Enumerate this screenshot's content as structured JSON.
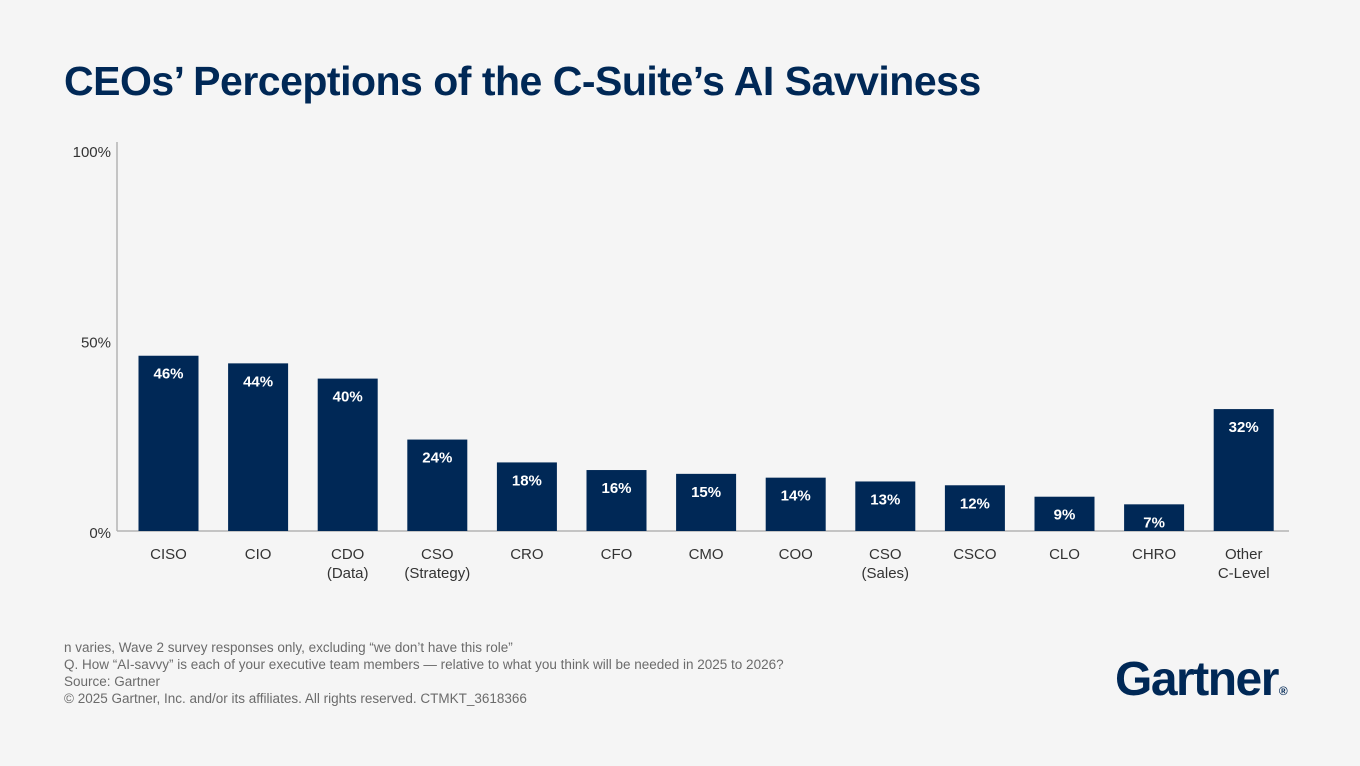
{
  "chart_data": {
    "type": "bar",
    "title": "CEOs’ Perceptions of the C-Suite’s AI Savviness",
    "xlabel": "",
    "ylabel": "",
    "ylim": [
      0,
      100
    ],
    "yticks": [
      {
        "value": 0,
        "label": "0%"
      },
      {
        "value": 50,
        "label": "50%"
      },
      {
        "value": 100,
        "label": "100%"
      }
    ],
    "categories": [
      [
        "CISO"
      ],
      [
        "CIO"
      ],
      [
        "CDO",
        "(Data)"
      ],
      [
        "CSO",
        "(Strategy)"
      ],
      [
        "CRO"
      ],
      [
        "CFO"
      ],
      [
        "CMO"
      ],
      [
        "COO"
      ],
      [
        "CSO",
        "(Sales)"
      ],
      [
        "CSCO"
      ],
      [
        "CLO"
      ],
      [
        "CHRO"
      ],
      [
        "Other",
        "C-Level"
      ]
    ],
    "values": [
      46,
      44,
      40,
      24,
      18,
      16,
      15,
      14,
      13,
      12,
      9,
      7,
      32
    ],
    "value_labels": [
      "46%",
      "44%",
      "40%",
      "24%",
      "18%",
      "16%",
      "15%",
      "14%",
      "13%",
      "12%",
      "9%",
      "7%",
      "32%"
    ],
    "bar_color": "#002856",
    "grid": false
  },
  "footnotes": {
    "line1": "n varies, Wave 2 survey responses only, excluding “we don’t have this role”",
    "line2": "Q. How “AI-savvy” is each of your executive team members — relative to what you think will be needed in 2025 to 2026?",
    "line3": "Source: Gartner",
    "line4": "© 2025 Gartner, Inc. and/or its affiliates. All rights reserved. CTMKT_3618366"
  },
  "logo": {
    "text": "Gartner",
    "mark": "®"
  },
  "colors": {
    "background": "#f5f5f5",
    "navy": "#002856",
    "axis": "#b3b3b3"
  }
}
